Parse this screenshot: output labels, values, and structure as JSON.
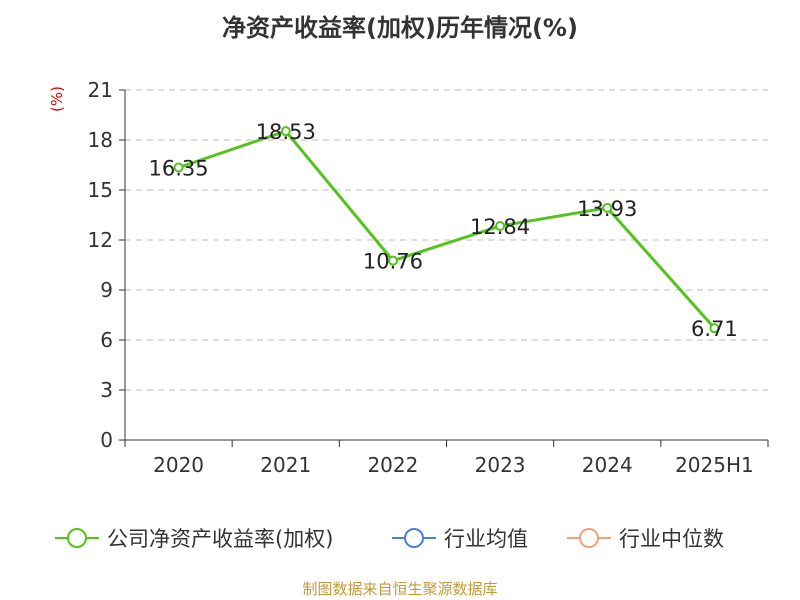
{
  "title": "净资产收益率(加权)历年情况(%)",
  "unit_label": "(%)",
  "source": "制图数据来自恒生聚源数据库",
  "colors": {
    "series_company": "#52c41a",
    "series_industry_avg": "#4a7fd8",
    "series_industry_median": "#f5a07a",
    "axis": "#333333",
    "grid": "#bbbbbb",
    "unit": "#e00000",
    "source": "#c49a3a"
  },
  "legend": [
    {
      "label": "公司净资产收益率(加权)",
      "color": "#52c41a"
    },
    {
      "label": "行业均值",
      "color": "#4a7fd8"
    },
    {
      "label": "行业中位数",
      "color": "#f5a07a"
    }
  ],
  "chart_data": {
    "type": "line",
    "categories": [
      "2020",
      "2021",
      "2022",
      "2023",
      "2024",
      "2025H1"
    ],
    "series": [
      {
        "name": "公司净资产收益率(加权)",
        "values": [
          16.35,
          18.53,
          10.76,
          12.84,
          13.93,
          6.71
        ],
        "color": "#52c41a"
      }
    ],
    "data_labels": [
      "16.35",
      "18.53",
      "10.76",
      "12.84",
      "13.93",
      "6.71"
    ],
    "yticks": [
      "0",
      "3",
      "6",
      "9",
      "12",
      "15",
      "18",
      "21"
    ],
    "ylim": [
      0,
      21
    ],
    "grid": true,
    "legend_position": "bottom"
  }
}
